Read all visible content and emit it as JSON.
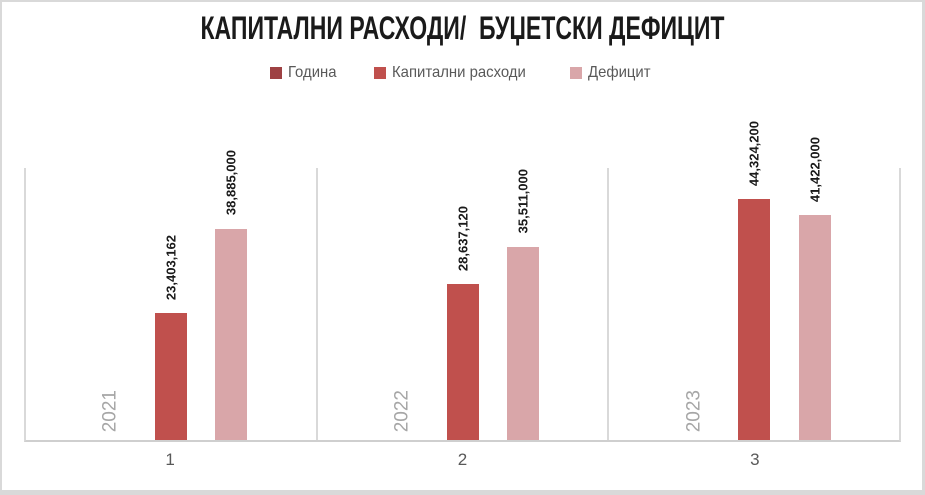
{
  "title": "КАПИТАЛНИ РАСХОДИ/  БУЏЕТСКИ ДЕФИЦИТ",
  "legend": {
    "items": [
      {
        "label": "Година",
        "color": "#9E4143"
      },
      {
        "label": "Капитални расходи",
        "color": "#C0504D"
      },
      {
        "label": "Дефицит",
        "color": "#D9A6A9"
      }
    ]
  },
  "chart_data": {
    "type": "bar",
    "title": "КАПИТАЛНИ РАСХОДИ/  БУЏЕТСКИ ДЕФИЦИТ",
    "categories": [
      "1",
      "2",
      "3"
    ],
    "series": [
      {
        "name": "Година",
        "color": "#9E4143",
        "values": [
          2021,
          2022,
          2023
        ],
        "data_labels": [
          "2021",
          "2022",
          "2023"
        ],
        "label_color": "#A6A6A6",
        "label_bold": false,
        "label_size": 19
      },
      {
        "name": "Капитални расходи",
        "color": "#C0504D",
        "values": [
          23403162,
          28637120,
          44324200
        ],
        "data_labels": [
          "23,403,162",
          "28,637,120",
          "44,324,200"
        ],
        "label_color": "#1A1A1A",
        "label_bold": true,
        "label_size": 13
      },
      {
        "name": "Дефицит",
        "color": "#D9A6A9",
        "values": [
          38885000,
          35511000,
          41422000
        ],
        "data_labels": [
          "38,885,000",
          "35,511,000",
          "41,422,000"
        ],
        "label_color": "#1A1A1A",
        "label_bold": true,
        "label_size": 13
      }
    ],
    "ylim": [
      0,
      50000000
    ],
    "xlabel": "",
    "ylabel": "",
    "grid": "vertical-category-separators-only",
    "legend_position": "top",
    "data_label_rotation": -90,
    "axis_label_color": "#595959",
    "gridline_color": "#D9D9D9"
  }
}
